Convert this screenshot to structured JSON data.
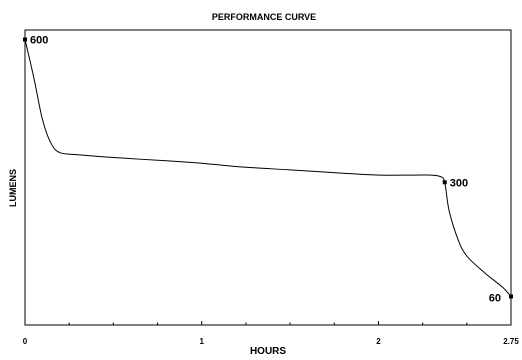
{
  "chart_data": {
    "type": "line",
    "title": "PERFORMANCE CURVE",
    "xlabel": "HOURS",
    "ylabel": "LUMENS",
    "xlim": [
      0,
      2.75
    ],
    "ylim": [
      0,
      620
    ],
    "x_ticks": [
      0,
      1,
      2,
      2.75
    ],
    "x_tick_labels": [
      "0",
      "1",
      "2",
      "2.75"
    ],
    "x_minor_step": 0.25,
    "grid": false,
    "series": [
      {
        "x": [
          0,
          0.05,
          0.1,
          0.15,
          0.2,
          0.3,
          0.5,
          0.8,
          1.0,
          1.2,
          1.5,
          1.8,
          2.0,
          2.2,
          2.3,
          2.35,
          2.375,
          2.4,
          2.45,
          2.5,
          2.6,
          2.7,
          2.75
        ],
        "y": [
          600,
          520,
          430,
          380,
          362,
          358,
          352,
          345,
          340,
          333,
          326,
          319,
          315,
          315,
          315,
          312,
          300,
          240,
          180,
          145,
          110,
          80,
          60
        ]
      }
    ],
    "labeled_points": [
      {
        "x": 0,
        "y": 600,
        "label": "600"
      },
      {
        "x": 2.375,
        "y": 300,
        "label": "300"
      },
      {
        "x": 2.75,
        "y": 60,
        "label": "60"
      }
    ]
  }
}
